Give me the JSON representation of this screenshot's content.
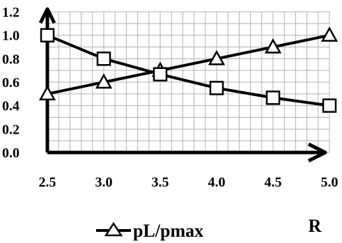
{
  "chart_data": {
    "type": "line",
    "x": [
      2.5,
      3.0,
      3.5,
      4.0,
      4.5,
      5.0
    ],
    "xlim": [
      2.5,
      5.0
    ],
    "ylim": [
      0.0,
      1.2
    ],
    "x_ticks": [
      "2.5",
      "3.0",
      "3.5",
      "4.0",
      "4.5",
      "5.0"
    ],
    "y_ticks": [
      "0.0",
      "0.2",
      "0.4",
      "0.6",
      "0.8",
      "1.0",
      "1.2"
    ],
    "xlabel": "R",
    "ylabel": "",
    "title": "",
    "grid": true,
    "legend_position": "bottom",
    "series": [
      {
        "name": "pL/pmax",
        "marker": "triangle",
        "values": [
          0.5,
          0.6,
          0.7,
          0.8,
          0.9,
          1.0
        ]
      },
      {
        "name": "",
        "marker": "square",
        "values": [
          1.0,
          0.8,
          0.667,
          0.55,
          0.467,
          0.4
        ]
      }
    ],
    "colors": {
      "line": "#000000",
      "grid": "#b0b0b0",
      "marker_fill": "#ffffff"
    }
  }
}
